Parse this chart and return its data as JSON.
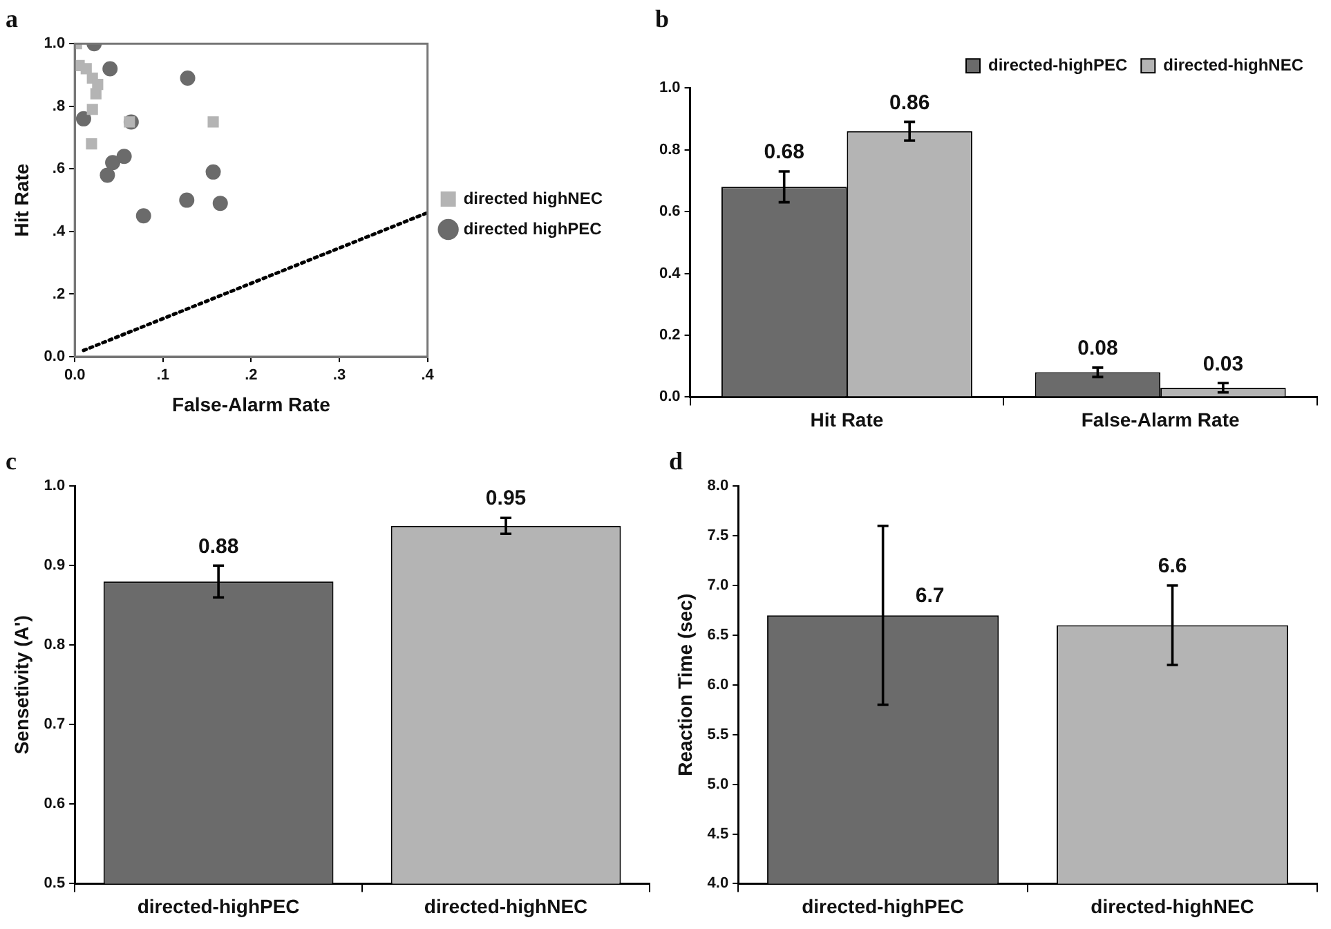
{
  "chart_data": [
    {
      "type": "scatter",
      "title": "a",
      "xlabel": "False-Alarm Rate",
      "ylabel": "Hit Rate",
      "legend": "right",
      "grid": false,
      "xlim": [
        0,
        0.4
      ],
      "xticks": [
        {
          "value": 0,
          "label": "0.0"
        },
        {
          "value": 0.1,
          "label": ".1"
        },
        {
          "value": 0.2,
          "label": ".2"
        },
        {
          "value": 0.3,
          "label": ".3"
        },
        {
          "value": 0.4,
          "label": ".4"
        }
      ],
      "ylim": [
        0,
        1
      ],
      "yticks": [
        {
          "value": 0,
          "label": "0.0"
        },
        {
          "value": 0.2,
          "label": ".2"
        },
        {
          "value": 0.4,
          "label": ".4"
        },
        {
          "value": 0.6,
          "label": ".6"
        },
        {
          "value": 0.8,
          "label": ".8"
        },
        {
          "value": 1,
          "label": "1.0"
        }
      ],
      "series": [
        {
          "name": "directed highPEC",
          "color": "#6b6b6b",
          "marker": "circle",
          "x": [
            0.022,
            0.04,
            0.128,
            0.01,
            0.064,
            0.056,
            0.043,
            0.037,
            0.157,
            0.127,
            0.165,
            0.078
          ],
          "values": [
            1.0,
            0.92,
            0.89,
            0.76,
            0.75,
            0.64,
            0.62,
            0.58,
            0.59,
            0.5,
            0.49,
            0.45
          ]
        },
        {
          "name": "directed highNEC",
          "color": "#b4b4b4",
          "marker": "square",
          "x": [
            0.002,
            0.005,
            0.013,
            0.02,
            0.026,
            0.024,
            0.02,
            0.019,
            0.062,
            0.157
          ],
          "values": [
            1.0,
            0.93,
            0.92,
            0.89,
            0.87,
            0.84,
            0.79,
            0.68,
            0.75,
            0.75
          ]
        },
        {
          "type": "line",
          "color": "#000000",
          "marker": "none",
          "line_style": "dotted",
          "x": [
            0.01,
            0.4
          ],
          "values": [
            0.02,
            0.46
          ]
        }
      ]
    },
    {
      "type": "bar",
      "title": "b",
      "categories": [
        "Hit Rate",
        "False-Alarm Rate"
      ],
      "legend": "top right",
      "grid": false,
      "data_labels": true,
      "ylim": [
        0,
        1
      ],
      "yticks": [
        {
          "value": 0,
          "label": "0.0"
        },
        {
          "value": 0.2,
          "label": "0.2"
        },
        {
          "value": 0.4,
          "label": "0.4"
        },
        {
          "value": 0.6,
          "label": "0.6"
        },
        {
          "value": 0.8,
          "label": "0.8"
        },
        {
          "value": 1,
          "label": "1.0"
        }
      ],
      "series": [
        {
          "name": "directed-highPEC",
          "color": "#6b6b6b",
          "values": [
            0.68,
            0.08
          ],
          "errors": [
            0.05,
            0.015
          ]
        },
        {
          "name": "directed-highNEC",
          "color": "#b4b4b4",
          "values": [
            0.86,
            0.03
          ],
          "errors": [
            0.03,
            0.015
          ]
        }
      ]
    },
    {
      "type": "bar",
      "title": "c",
      "ylabel": "Sensetivity (A')",
      "categories": [
        "directed-highPEC",
        "directed-highNEC"
      ],
      "grid": false,
      "data_labels": true,
      "values": [
        0.88,
        0.95
      ],
      "colors": [
        "#6b6b6b",
        "#b4b4b4"
      ],
      "errors": [
        0.02,
        0.01
      ],
      "ylim": [
        0.5,
        1
      ],
      "yticks": [
        0.5,
        0.6,
        0.7,
        0.8,
        0.9,
        {
          "value": 1,
          "label": "1.0"
        }
      ]
    },
    {
      "type": "bar",
      "title": "d",
      "ylabel": "Reaction Time (sec)",
      "categories": [
        "directed-highPEC",
        "directed-highNEC"
      ],
      "grid": false,
      "data_labels": true,
      "values": [
        6.7,
        6.6
      ],
      "colors": [
        "#6b6b6b",
        "#b4b4b4"
      ],
      "errors": [
        0.9,
        0.4
      ],
      "ylim": [
        4,
        8
      ],
      "yticks": [
        {
          "value": 4,
          "label": "4.0"
        },
        4.5,
        {
          "value": 5,
          "label": "5.0"
        },
        5.5,
        {
          "value": 6,
          "label": "6.0"
        },
        6.5,
        {
          "value": 7,
          "label": "7.0"
        },
        7.5,
        {
          "value": 8,
          "label": "8.0"
        }
      ]
    }
  ]
}
